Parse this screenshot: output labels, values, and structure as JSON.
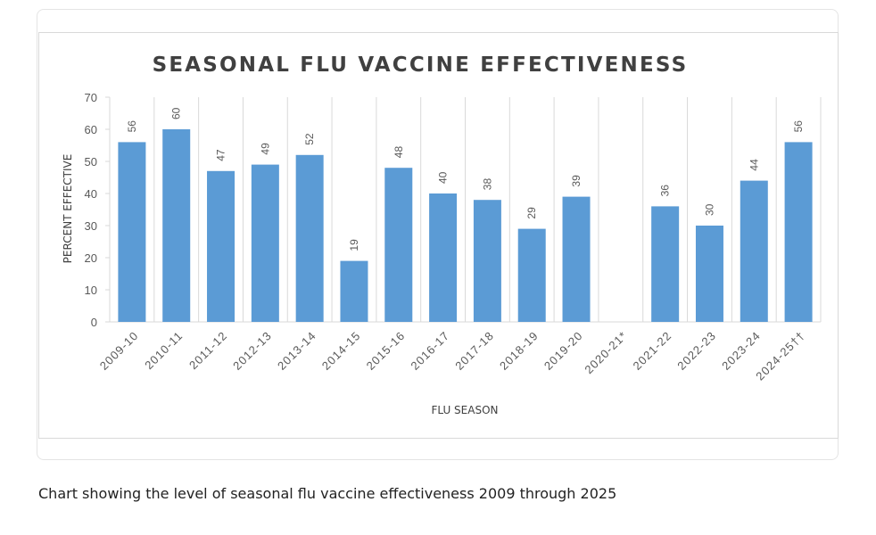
{
  "caption": "Chart showing the level of seasonal flu vaccine effectiveness 2009 through 2025",
  "colors": {
    "bar": "#5b9bd5",
    "grid": "#d9d9d9",
    "text": "#595959",
    "title": "#404040"
  },
  "chart_data": {
    "type": "bar",
    "title": "SEASONAL FLU VACCINE EFFECTIVENESS",
    "xlabel": "FLU SEASON",
    "ylabel": "PERCENT EFFECTIVE",
    "ylim": [
      0,
      70
    ],
    "yticks": [
      0,
      10,
      20,
      30,
      40,
      50,
      60,
      70
    ],
    "categories": [
      "2009-10",
      "2010-11",
      "2011-12",
      "2012-13",
      "2013-14",
      "2014-15",
      "2015-16",
      "2016-17",
      "2017-18",
      "2018-19",
      "2019-20",
      "2020-21*",
      "2021-22",
      "2022-23",
      "2023-24",
      "2024-25††"
    ],
    "values": [
      56,
      60,
      47,
      49,
      52,
      19,
      48,
      40,
      38,
      29,
      39,
      null,
      36,
      30,
      44,
      56
    ]
  }
}
